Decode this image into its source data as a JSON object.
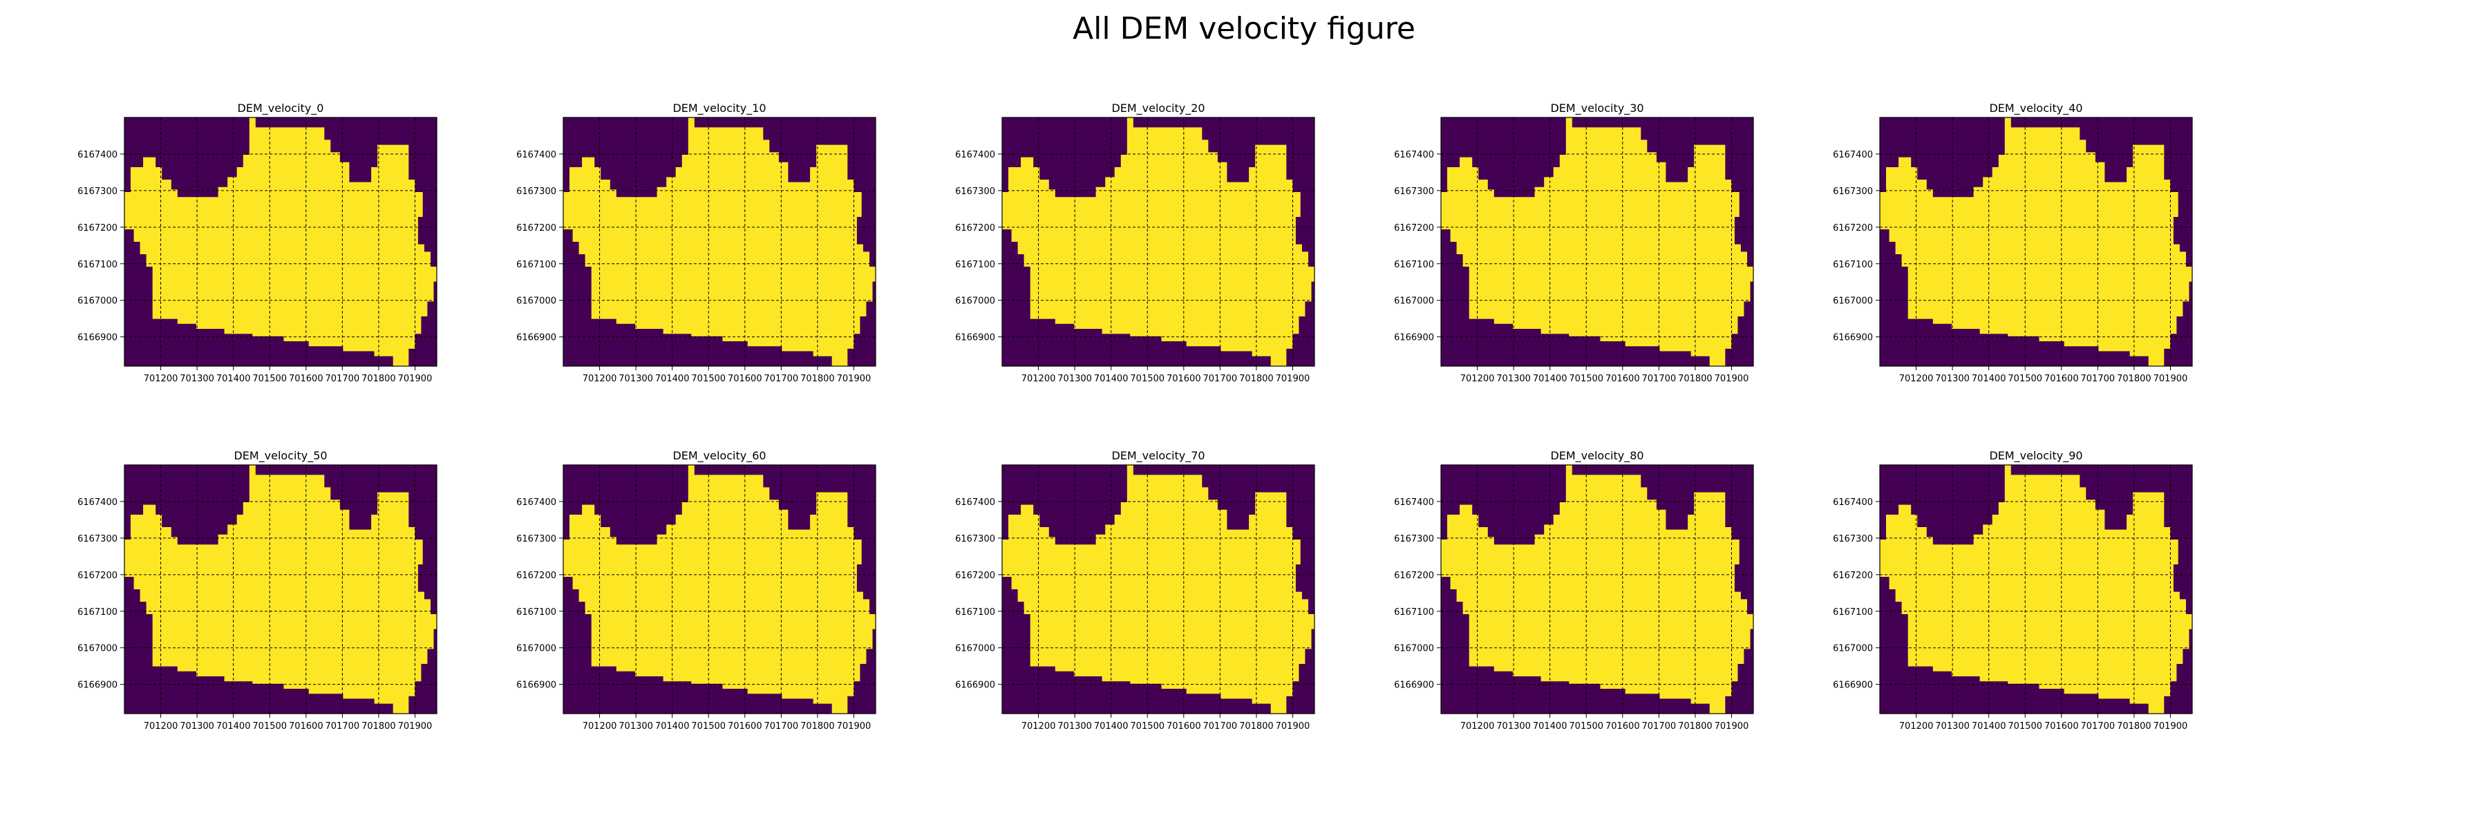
{
  "figure": {
    "title": "All DEM velocity figure"
  },
  "colors": {
    "inside": "#fde725",
    "outside": "#440154",
    "grid": "#000000"
  },
  "chart_data": [
    {
      "type": "heatmap",
      "title": "DEM_velocity_0",
      "xticks": [
        "701200",
        "701300",
        "701400",
        "701500",
        "701600",
        "701700",
        "701800",
        "701900"
      ],
      "yticks": [
        "6167400",
        "6167300",
        "6167200",
        "6167100",
        "6167000",
        "6166900"
      ],
      "xlim": [
        701100,
        701960
      ],
      "ylim": [
        6166820,
        6167500
      ],
      "grid": true,
      "colormap": "viridis"
    },
    {
      "type": "heatmap",
      "title": "DEM_velocity_10",
      "xticks": [
        "701200",
        "701300",
        "701400",
        "701500",
        "701600",
        "701700",
        "701800",
        "701900"
      ],
      "yticks": [
        "6167400",
        "6167300",
        "6167200",
        "6167100",
        "6167000",
        "6166900"
      ],
      "xlim": [
        701100,
        701960
      ],
      "ylim": [
        6166820,
        6167500
      ],
      "grid": true,
      "colormap": "viridis"
    },
    {
      "type": "heatmap",
      "title": "DEM_velocity_20",
      "xticks": [
        "701200",
        "701300",
        "701400",
        "701500",
        "701600",
        "701700",
        "701800",
        "701900"
      ],
      "yticks": [
        "6167400",
        "6167300",
        "6167200",
        "6167100",
        "6167000",
        "6166900"
      ],
      "xlim": [
        701100,
        701960
      ],
      "ylim": [
        6166820,
        6167500
      ],
      "grid": true,
      "colormap": "viridis"
    },
    {
      "type": "heatmap",
      "title": "DEM_velocity_30",
      "xticks": [
        "701200",
        "701300",
        "701400",
        "701500",
        "701600",
        "701700",
        "701800",
        "701900"
      ],
      "yticks": [
        "6167400",
        "6167300",
        "6167200",
        "6167100",
        "6167000",
        "6166900"
      ],
      "xlim": [
        701100,
        701960
      ],
      "ylim": [
        6166820,
        6167500
      ],
      "grid": true,
      "colormap": "viridis"
    },
    {
      "type": "heatmap",
      "title": "DEM_velocity_40",
      "xticks": [
        "701200",
        "701300",
        "701400",
        "701500",
        "701600",
        "701700",
        "701800",
        "701900"
      ],
      "yticks": [
        "6167400",
        "6167300",
        "6167200",
        "6167100",
        "6167000",
        "6166900"
      ],
      "xlim": [
        701100,
        701960
      ],
      "ylim": [
        6166820,
        6167500
      ],
      "grid": true,
      "colormap": "viridis"
    },
    {
      "type": "heatmap",
      "title": "DEM_velocity_50",
      "xticks": [
        "701200",
        "701300",
        "701400",
        "701500",
        "701600",
        "701700",
        "701800",
        "701900"
      ],
      "yticks": [
        "6167400",
        "6167300",
        "6167200",
        "6167100",
        "6167000",
        "6166900"
      ],
      "xlim": [
        701100,
        701960
      ],
      "ylim": [
        6166820,
        6167500
      ],
      "grid": true,
      "colormap": "viridis"
    },
    {
      "type": "heatmap",
      "title": "DEM_velocity_60",
      "xticks": [
        "701200",
        "701300",
        "701400",
        "701500",
        "701600",
        "701700",
        "701800",
        "701900"
      ],
      "yticks": [
        "6167400",
        "6167300",
        "6167200",
        "6167100",
        "6167000",
        "6166900"
      ],
      "xlim": [
        701100,
        701960
      ],
      "ylim": [
        6166820,
        6167500
      ],
      "grid": true,
      "colormap": "viridis"
    },
    {
      "type": "heatmap",
      "title": "DEM_velocity_70",
      "xticks": [
        "701200",
        "701300",
        "701400",
        "701500",
        "701600",
        "701700",
        "701800",
        "701900"
      ],
      "yticks": [
        "6167400",
        "6167300",
        "6167200",
        "6167100",
        "6167000",
        "6166900"
      ],
      "xlim": [
        701100,
        701960
      ],
      "ylim": [
        6166820,
        6167500
      ],
      "grid": true,
      "colormap": "viridis"
    },
    {
      "type": "heatmap",
      "title": "DEM_velocity_80",
      "xticks": [
        "701200",
        "701300",
        "701400",
        "701500",
        "701600",
        "701700",
        "701800",
        "701900"
      ],
      "yticks": [
        "6167400",
        "6167300",
        "6167200",
        "6167100",
        "6167000",
        "6166900"
      ],
      "xlim": [
        701100,
        701960
      ],
      "ylim": [
        6166820,
        6167500
      ],
      "grid": true,
      "colormap": "viridis"
    },
    {
      "type": "heatmap",
      "title": "DEM_velocity_90",
      "xticks": [
        "701200",
        "701300",
        "701400",
        "701500",
        "701600",
        "701700",
        "701800",
        "701900"
      ],
      "yticks": [
        "6167400",
        "6167300",
        "6167200",
        "6167100",
        "6167000",
        "6166900"
      ],
      "xlim": [
        701100,
        701960
      ],
      "ylim": [
        6166820,
        6167500
      ],
      "grid": true,
      "colormap": "viridis"
    }
  ]
}
